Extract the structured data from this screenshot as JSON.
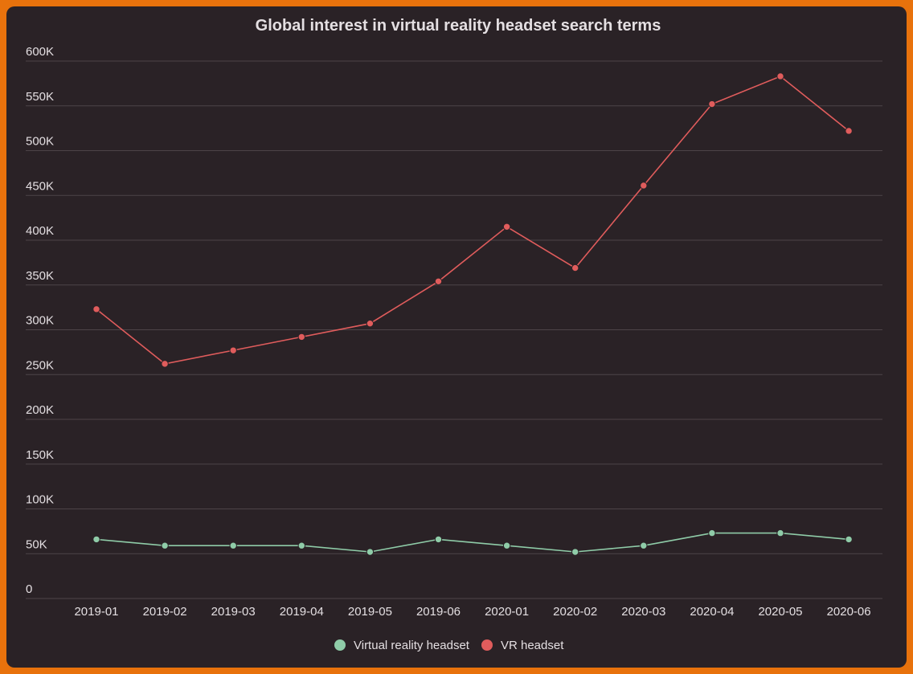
{
  "chart_data": {
    "type": "line",
    "title": "Global interest in virtual reality headset search terms",
    "xlabel": "",
    "ylabel": "",
    "categories": [
      "2019-01",
      "2019-02",
      "2019-03",
      "2019-04",
      "2019-05",
      "2019-06",
      "2020-01",
      "2020-02",
      "2020-03",
      "2020-04",
      "2020-05",
      "2020-06"
    ],
    "ylim": [
      0,
      600000
    ],
    "yticks": [
      0,
      50000,
      100000,
      150000,
      200000,
      250000,
      300000,
      350000,
      400000,
      450000,
      500000,
      550000,
      600000
    ],
    "ytick_labels": [
      "0",
      "50K",
      "100K",
      "150K",
      "200K",
      "250K",
      "300K",
      "350K",
      "400K",
      "450K",
      "500K",
      "550K",
      "600K"
    ],
    "grid": true,
    "legend_position": "bottom",
    "series": [
      {
        "name": "Virtual reality headset",
        "color": "#8fcca8",
        "values": [
          66000,
          59000,
          59000,
          59000,
          52000,
          66000,
          59000,
          52000,
          59000,
          73000,
          73000,
          66000
        ]
      },
      {
        "name": "VR headset",
        "color": "#e05c5c",
        "values": [
          323000,
          262000,
          277000,
          292000,
          307000,
          354000,
          415000,
          369000,
          461000,
          552000,
          583000,
          522000
        ]
      }
    ]
  }
}
